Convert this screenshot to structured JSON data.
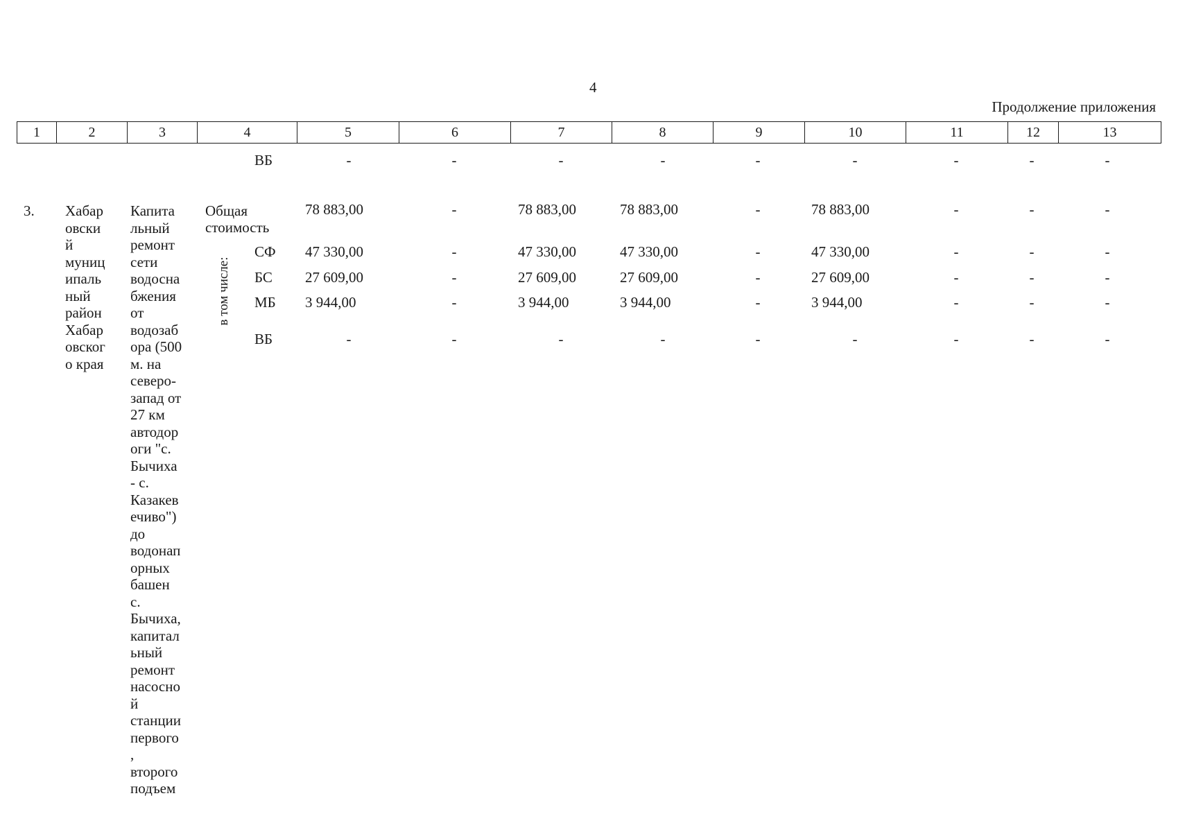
{
  "page_number": "4",
  "heading": "Продолжение приложения",
  "column_numbers": [
    "1",
    "2",
    "3",
    "4",
    "5",
    "6",
    "7",
    "8",
    "9",
    "10",
    "11",
    "12",
    "13"
  ],
  "carry_over_row": {
    "source": "ВБ",
    "values": [
      "-",
      "-",
      "-",
      "-",
      "-",
      "-",
      "-",
      "-",
      "-"
    ]
  },
  "entry": {
    "number": "3.",
    "municipality": "Хабар\nовски\nй\nмуниц\nипаль\nный\nрайон\nХабар\nовског\nо края",
    "object": "Капита\nльный\nремонт\nсети\nводосна\nбжения\nот\nводозаб\nора (500\nм.      на\nсеверо-\nзапад от\n27      км\nавтодор\nоги    \"с.\nБычиха\n-         с.\nКазакев\nечиво\")\nдо\nводонап\nорных\nбашен\nс.\nБычиха,\nкапитал\nьный\nремонт\nнасосно\nй\nстанции\nпервого\n,\nвторого\nподъем",
    "total_label": "Общая\nстоимость",
    "included_label": "в том числе:",
    "total_row": [
      "78 883,00",
      "-",
      "78 883,00",
      "78 883,00",
      "-",
      "78 883,00",
      "-",
      "-",
      "-"
    ],
    "rows": [
      {
        "source": "СФ",
        "values": [
          "47 330,00",
          "-",
          "47 330,00",
          "47 330,00",
          "-",
          "47 330,00",
          "-",
          "-",
          "-"
        ]
      },
      {
        "source": "БС",
        "values": [
          "27 609,00",
          "-",
          "27 609,00",
          "27 609,00",
          "-",
          "27 609,00",
          "-",
          "-",
          "-"
        ]
      },
      {
        "source": "МБ",
        "values": [
          "3 944,00",
          "-",
          "3 944,00",
          "3 944,00",
          "-",
          "3 944,00",
          "-",
          "-",
          "-"
        ]
      },
      {
        "source": "ВБ",
        "values": [
          "-",
          "-",
          "-",
          "-",
          "-",
          "-",
          "-",
          "-",
          "-"
        ]
      }
    ]
  }
}
